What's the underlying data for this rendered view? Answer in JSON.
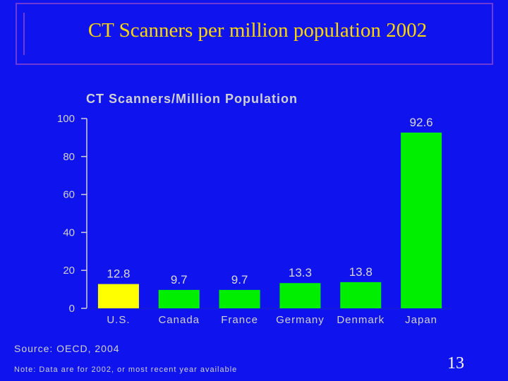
{
  "slide": {
    "title": "CT Scanners per million population 2002",
    "page_number": "13",
    "source": "Source: OECD, 2004",
    "note": "Note: Data are for 2002, or most recent year available"
  },
  "colors": {
    "background": "#0f14ef",
    "title": "#ffd700",
    "bar": "#00ee00",
    "highlight_bar": "#ffff00",
    "text": "#d0d0d0"
  },
  "chart_data": {
    "type": "bar",
    "title": "CT Scanners/Million Population",
    "xlabel": "",
    "ylabel": "",
    "categories": [
      "U.S.",
      "Canada",
      "France",
      "Germany",
      "Denmark",
      "Japan"
    ],
    "values": [
      12.8,
      9.7,
      9.7,
      13.3,
      13.8,
      92.6
    ],
    "value_labels": [
      "12.8",
      "9.7",
      "9.7",
      "13.3",
      "13.8",
      "92.6"
    ],
    "highlight_category": "U.S.",
    "ylim": [
      0,
      100
    ],
    "yticks": [
      0,
      20,
      40,
      60,
      80,
      100
    ],
    "grid": false,
    "legend": "none"
  }
}
